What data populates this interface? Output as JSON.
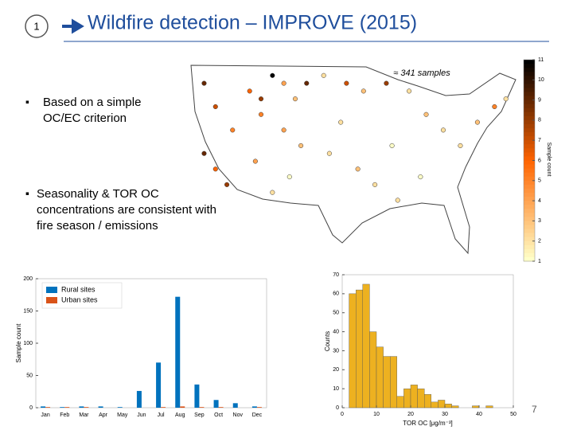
{
  "header": {
    "number": "1",
    "title": "Wildfire detection – IMPROVE (2015)"
  },
  "bullets": [
    "Based on a simple OC/EC criterion",
    "Seasonality & TOR OC concentrations are consistent with fire season / emissions"
  ],
  "page_number": "7",
  "chart_data": [
    {
      "type": "map",
      "annotation": "≈ 341 samples",
      "colorbar_label": "Sample count",
      "clim": [
        1,
        11
      ],
      "cticks": [
        1,
        2,
        3,
        4,
        5,
        6,
        7,
        8,
        9,
        10,
        11
      ],
      "xlim": [
        -125,
        -67
      ],
      "ylim": [
        25,
        49
      ],
      "x": [
        -122,
        -120,
        -117,
        -114,
        -112,
        -110,
        -108,
        -106,
        -104,
        -101,
        -97,
        -94,
        -90,
        -86,
        -83,
        -80,
        -77,
        -74,
        -71,
        -69,
        -122,
        -120,
        -118,
        -113,
        -110,
        -107,
        -105,
        -100,
        -95,
        -92,
        -88,
        -84,
        -112,
        -108,
        -98,
        -89
      ],
      "y": [
        47,
        44,
        41,
        46,
        45,
        48,
        47,
        45,
        47,
        48,
        47,
        46,
        47,
        46,
        43,
        41,
        39,
        42,
        44,
        45,
        38,
        36,
        34,
        37,
        33,
        35,
        39,
        38,
        36,
        34,
        32,
        35,
        43,
        41,
        42,
        39
      ],
      "values": [
        9,
        7,
        5,
        6,
        8,
        11,
        4,
        3,
        9,
        2,
        7,
        3,
        8,
        2,
        3,
        2,
        2,
        3,
        5,
        2,
        9,
        6,
        8,
        4,
        2,
        1,
        3,
        2,
        3,
        2,
        2,
        1,
        5,
        4,
        2,
        1
      ]
    },
    {
      "type": "bar",
      "ylabel": "Sample count",
      "categories": [
        "Jan",
        "Feb",
        "Mar",
        "Apr",
        "May",
        "Jun",
        "Jul",
        "Aug",
        "Sep",
        "Oct",
        "Nov",
        "Dec"
      ],
      "series": [
        {
          "name": "Rural sites",
          "color": "#0072bd",
          "values": [
            2,
            1,
            2,
            2,
            1,
            26,
            70,
            172,
            36,
            12,
            7,
            2
          ]
        },
        {
          "name": "Urban sites",
          "color": "#d95319",
          "values": [
            1,
            1,
            1,
            0,
            0,
            0,
            1,
            2,
            1,
            1,
            0,
            1
          ]
        }
      ],
      "ylim": [
        0,
        200
      ],
      "yticks": [
        0,
        50,
        100,
        150,
        200
      ],
      "legend": "upper left"
    },
    {
      "type": "histogram",
      "xlabel": "TOR OC [μg/m⁻³]",
      "ylabel": "Counts",
      "color": "#edb120",
      "bins": [
        0,
        2,
        4,
        6,
        8,
        10,
        12,
        14,
        16,
        18,
        20,
        22,
        24,
        26,
        28,
        30,
        32,
        34,
        36,
        38,
        40,
        42,
        44,
        46
      ],
      "counts": [
        0,
        60,
        62,
        65,
        40,
        32,
        27,
        27,
        6,
        10,
        12,
        10,
        7,
        3,
        4,
        2,
        1,
        0,
        0,
        1,
        0,
        1,
        0
      ],
      "xlim": [
        0,
        50
      ],
      "xticks": [
        0,
        10,
        20,
        30,
        40,
        50
      ],
      "ylim": [
        0,
        70
      ],
      "yticks": [
        0,
        10,
        20,
        30,
        40,
        50,
        60,
        70
      ]
    }
  ]
}
